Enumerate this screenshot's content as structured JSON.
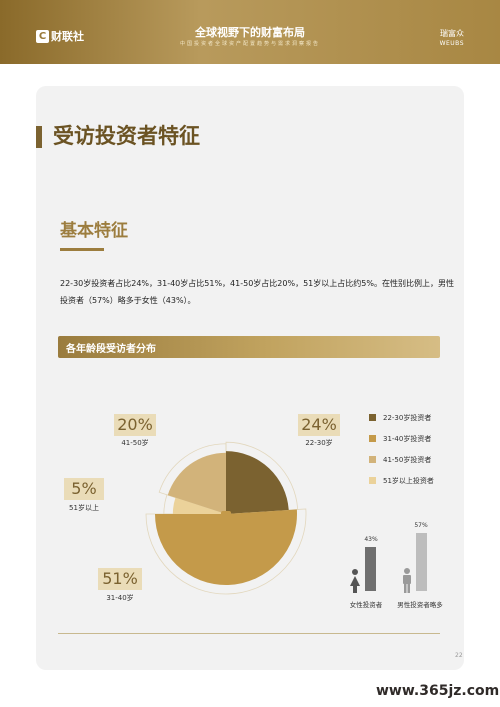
{
  "header": {
    "logo_mark": "C",
    "logo_text": "财联社",
    "title": "全球视野下的财富布局",
    "subtitle": "中国投资者全球资产配置趋势与需求洞察报告",
    "brand_cn": "瑞富众",
    "brand_en": "WEUBS"
  },
  "section": {
    "title": "受访投资者特征",
    "subtitle": "基本特征",
    "description": "22-30岁投资者占比24%，31-40岁占比51%，41-50岁占比20%，51岁以上占比约5%。在性别比例上，男性投资者（57%）略多于女性（43%）。",
    "band_title": "各年龄段受访者分布"
  },
  "chart_data": [
    {
      "type": "pie",
      "title": "各年龄段受访者分布",
      "categories": [
        "22-30岁投资者",
        "31-40岁投资者",
        "41-50岁投资者",
        "51岁以上投资者"
      ],
      "values": [
        24,
        51,
        20,
        5
      ],
      "colors": [
        "#7b6230",
        "#c49a4a",
        "#d2b37a",
        "#ebd29a"
      ],
      "callouts": [
        {
          "pct": "24%",
          "label": "22-30岁"
        },
        {
          "pct": "51%",
          "label": "31-40岁"
        },
        {
          "pct": "20%",
          "label": "41-50岁"
        },
        {
          "pct": "5%",
          "label": "51岁以上"
        }
      ],
      "legend_position": "right"
    },
    {
      "type": "bar",
      "categories": [
        "女性投资者",
        "男性投资者略多"
      ],
      "values": [
        43,
        57
      ],
      "labels": [
        "43%",
        "57%"
      ],
      "colors": [
        "#6f6f6f",
        "#bdbdbd"
      ]
    }
  ],
  "legend": [
    {
      "label": "22-30岁投资者",
      "color": "#7b6230"
    },
    {
      "label": "31-40岁投资者",
      "color": "#c49a4a"
    },
    {
      "label": "41-50岁投资者",
      "color": "#d2b37a"
    },
    {
      "label": "51岁以上投资者",
      "color": "#ebd29a"
    }
  ],
  "gender": {
    "female_label": "女性投资者",
    "male_label": "男性投资者略多",
    "female_value": "43%",
    "male_value": "57%"
  },
  "page_number": "22",
  "watermark": "www.365jz.com"
}
